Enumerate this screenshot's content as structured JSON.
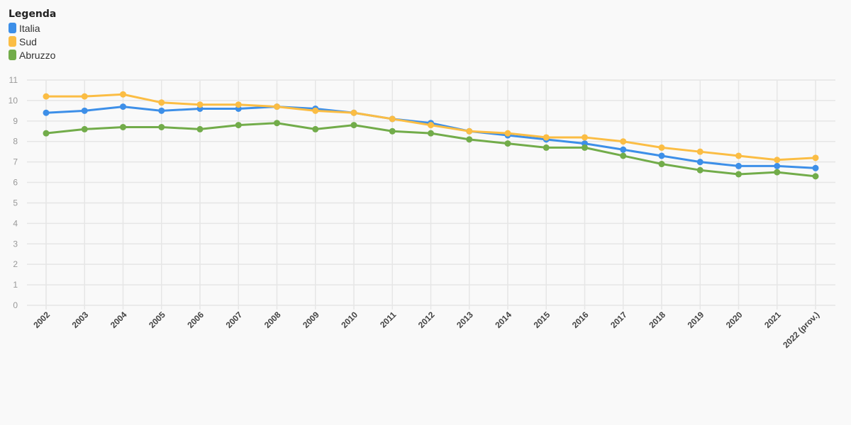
{
  "legend": {
    "title": "Legenda",
    "items": [
      {
        "label": "Italia",
        "color": "#3d8fe8"
      },
      {
        "label": "Sud",
        "color": "#fbbd44"
      },
      {
        "label": "Abruzzo",
        "color": "#72ac4a"
      }
    ]
  },
  "chart_data": {
    "type": "line",
    "title": "",
    "xlabel": "",
    "ylabel": "",
    "ylim": [
      0,
      11
    ],
    "yticks": [
      0,
      1,
      2,
      3,
      4,
      5,
      6,
      7,
      8,
      9,
      10,
      11
    ],
    "grid": true,
    "legend_position": "top-left",
    "categories": [
      "2002",
      "2003",
      "2004",
      "2005",
      "2006",
      "2007",
      "2008",
      "2009",
      "2010",
      "2011",
      "2012",
      "2013",
      "2014",
      "2015",
      "2016",
      "2017",
      "2018",
      "2019",
      "2020",
      "2021",
      "2022 (prov.)"
    ],
    "series": [
      {
        "name": "Italia",
        "color": "#3d8fe8",
        "values": [
          9.4,
          9.5,
          9.7,
          9.5,
          9.6,
          9.6,
          9.7,
          9.6,
          9.4,
          9.1,
          8.9,
          8.5,
          8.3,
          8.1,
          7.9,
          7.6,
          7.3,
          7.0,
          6.8,
          6.8,
          6.7
        ]
      },
      {
        "name": "Sud",
        "color": "#fbbd44",
        "values": [
          10.2,
          10.2,
          10.3,
          9.9,
          9.8,
          9.8,
          9.7,
          9.5,
          9.4,
          9.1,
          8.8,
          8.5,
          8.4,
          8.2,
          8.2,
          8.0,
          7.7,
          7.5,
          7.3,
          7.1,
          7.2
        ]
      },
      {
        "name": "Abruzzo",
        "color": "#72ac4a",
        "values": [
          8.4,
          8.6,
          8.7,
          8.7,
          8.6,
          8.8,
          8.9,
          8.6,
          8.8,
          8.5,
          8.4,
          8.1,
          7.9,
          7.7,
          7.7,
          7.3,
          6.9,
          6.6,
          6.4,
          6.5,
          6.3
        ]
      }
    ]
  }
}
